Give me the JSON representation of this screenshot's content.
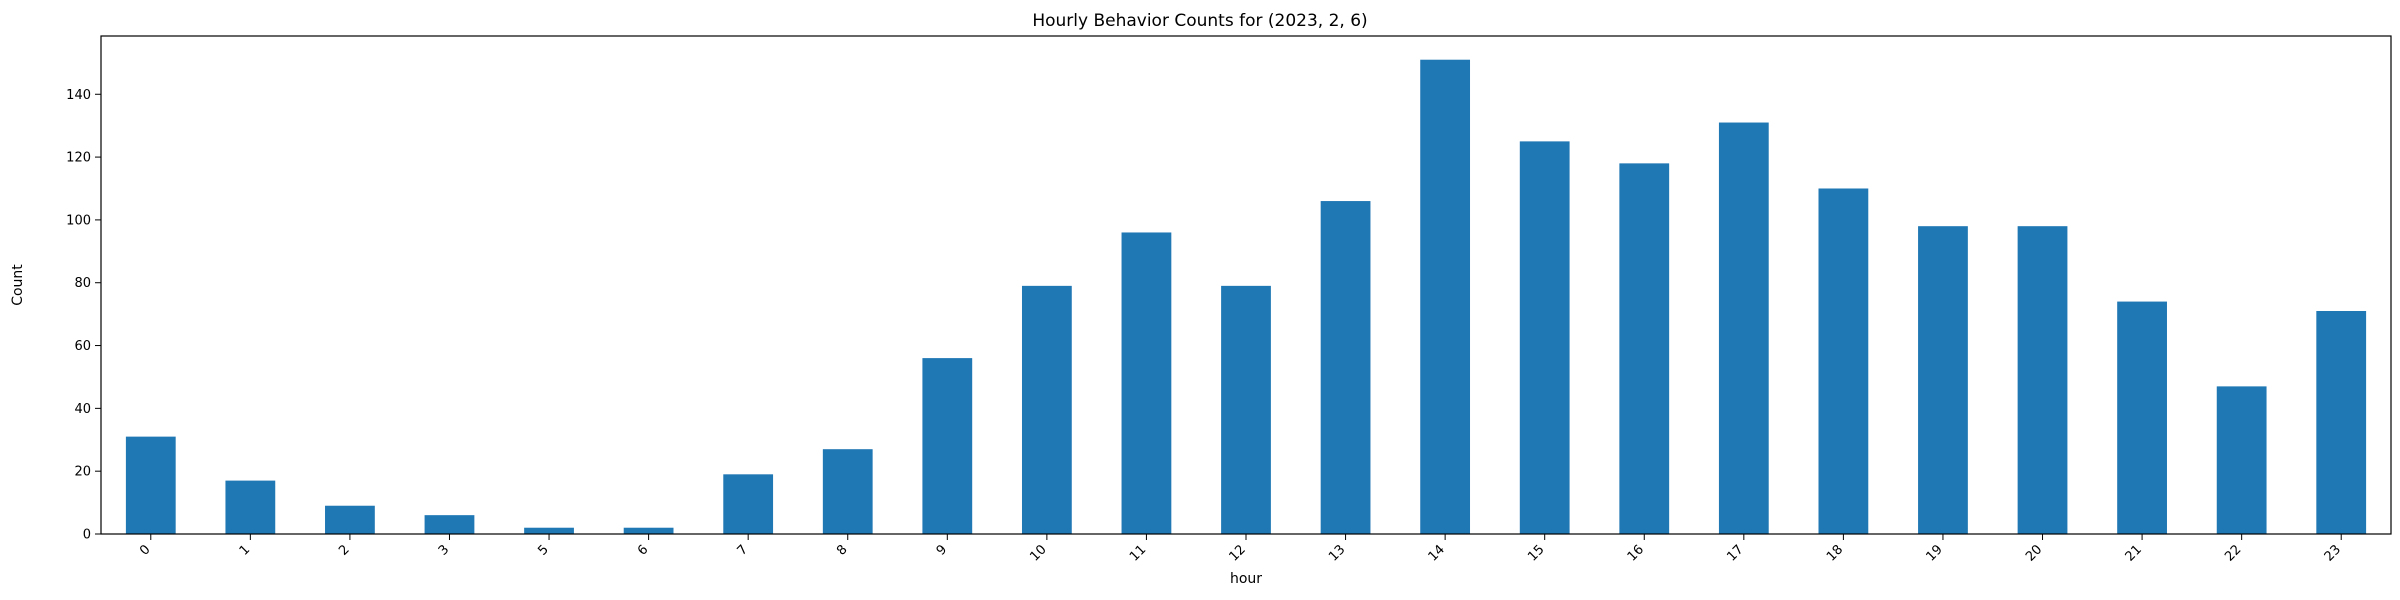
{
  "chart_data": {
    "type": "bar",
    "title": "Hourly Behavior Counts for (2023, 2, 6)",
    "xlabel": "hour",
    "ylabel": "Count",
    "categories": [
      "0",
      "1",
      "2",
      "3",
      "5",
      "6",
      "7",
      "8",
      "9",
      "10",
      "11",
      "12",
      "13",
      "14",
      "15",
      "16",
      "17",
      "18",
      "19",
      "20",
      "21",
      "22",
      "23"
    ],
    "values": [
      31,
      17,
      9,
      6,
      2,
      2,
      19,
      27,
      56,
      79,
      96,
      79,
      106,
      151,
      125,
      118,
      131,
      110,
      98,
      98,
      74,
      47,
      71
    ],
    "ylim": [
      0,
      158.55
    ],
    "yticks": [
      0,
      20,
      40,
      60,
      80,
      100,
      120,
      140
    ],
    "xtick_rotation": 45,
    "grid": false,
    "bar_color": "#1f77b4"
  }
}
